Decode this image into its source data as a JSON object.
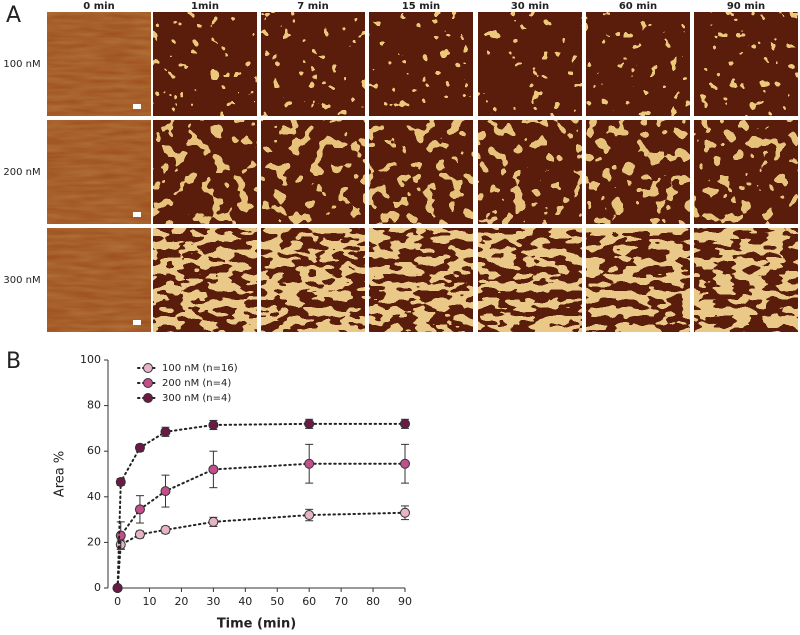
{
  "panel_a": {
    "label": "A",
    "columns": [
      "0 min",
      "1min",
      "7 min",
      "15 min",
      "30 min",
      "60 min",
      "90 min"
    ],
    "rows": [
      "100 nM",
      "200 nM",
      "300 nM"
    ]
  },
  "panel_b": {
    "label": "B"
  },
  "chart_data": {
    "type": "scatter",
    "x_label": "Time (min)",
    "y_label": "Area %",
    "x": [
      0,
      1,
      7,
      15,
      30,
      60,
      90
    ],
    "series": [
      {
        "name": "100 nM (n=16)",
        "color": "#e6b3c9",
        "values": [
          0,
          19,
          23.5,
          25.5,
          29,
          32,
          33
        ],
        "errors": [
          0,
          2,
          1.5,
          1.5,
          2,
          2.5,
          3
        ]
      },
      {
        "name": "200 nM (n=4)",
        "color": "#c24f8b",
        "values": [
          0,
          23,
          34.5,
          42.5,
          52,
          54.5,
          54.5
        ],
        "errors": [
          0,
          6,
          6,
          7,
          8,
          8.5,
          8.5
        ]
      },
      {
        "name": "300 nM (n=4)",
        "color": "#6a1a45",
        "values": [
          0,
          46.5,
          61.5,
          68.5,
          71.5,
          72,
          72
        ],
        "errors": [
          0,
          1.5,
          1.5,
          2,
          2,
          2,
          2
        ]
      }
    ],
    "xlim": [
      -3,
      90
    ],
    "xticks": [
      0,
      10,
      20,
      30,
      40,
      50,
      60,
      70,
      80,
      90
    ],
    "ylim": [
      0,
      100
    ],
    "yticks": [
      0,
      20,
      40,
      60,
      80,
      100
    ],
    "legend": "upper-left"
  }
}
